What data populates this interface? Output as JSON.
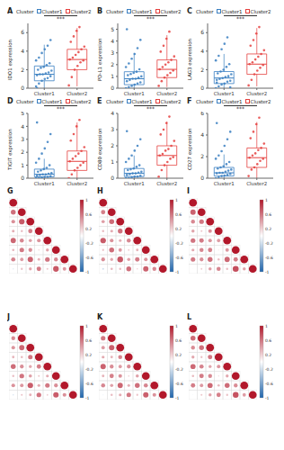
{
  "chart_data": [
    {
      "title": "A",
      "type": "box",
      "y_label": "IDO1 expression",
      "categories": [
        "Cluster1",
        "Cluster2"
      ],
      "ylim": [
        0,
        7
      ],
      "yticks": [
        0,
        2,
        4,
        6
      ],
      "annotations": [
        "***"
      ],
      "legend_title": "Cluster",
      "series": [
        {
          "name": "Cluster1",
          "color": "#3a7fc1",
          "box": {
            "q1": 0.8,
            "median": 1.5,
            "q3": 2.4,
            "whisker_low": 0,
            "whisker_high": 4.7
          },
          "points": [
            0.2,
            0.5,
            0.8,
            1.0,
            1.1,
            1.3,
            1.4,
            1.5,
            1.5,
            1.6,
            1.7,
            1.9,
            2.0,
            2.2,
            2.3,
            2.5,
            2.7,
            3.0,
            3.3,
            3.8,
            4.2,
            4.6,
            5.2,
            0.0
          ]
        },
        {
          "name": "Cluster2",
          "color": "#e5413f",
          "box": {
            "q1": 2.0,
            "median": 3.1,
            "q3": 4.2,
            "whisker_low": 0.2,
            "whisker_high": 6.5
          },
          "points": [
            0.3,
            1.2,
            2.0,
            2.4,
            2.8,
            3.0,
            3.1,
            3.3,
            3.6,
            3.9,
            4.2,
            4.5,
            5.0,
            5.6,
            6.2,
            6.6
          ]
        }
      ]
    },
    {
      "title": "B",
      "type": "box",
      "y_label": "PD-L1 expression",
      "categories": [
        "Cluster1",
        "Cluster2"
      ],
      "ylim": [
        0,
        5.5
      ],
      "yticks": [
        0,
        1,
        2,
        3,
        4,
        5
      ],
      "annotations": [
        "***"
      ],
      "legend_title": "Cluster",
      "series": [
        {
          "name": "Cluster1",
          "color": "#3a7fc1",
          "box": {
            "q1": 0.3,
            "median": 0.8,
            "q3": 1.4,
            "whisker_low": 0,
            "whisker_high": 3.0
          },
          "points": [
            0,
            0.1,
            0.2,
            0.3,
            0.4,
            0.5,
            0.6,
            0.7,
            0.8,
            0.8,
            0.9,
            1.0,
            1.1,
            1.2,
            1.3,
            1.4,
            1.6,
            1.8,
            2.1,
            2.5,
            2.9,
            3.4,
            4.1,
            5.0
          ]
        },
        {
          "name": "Cluster2",
          "color": "#e5413f",
          "box": {
            "q1": 0.9,
            "median": 1.6,
            "q3": 2.4,
            "whisker_low": 0.1,
            "whisker_high": 4.5
          },
          "points": [
            0.2,
            0.6,
            0.9,
            1.1,
            1.3,
            1.5,
            1.6,
            1.8,
            2.0,
            2.2,
            2.4,
            2.7,
            3.1,
            3.6,
            4.2,
            4.8
          ]
        }
      ]
    },
    {
      "title": "C",
      "type": "box",
      "y_label": "LAG3 expression",
      "categories": [
        "Cluster1",
        "Cluster2"
      ],
      "ylim": [
        0,
        7
      ],
      "yticks": [
        0,
        2,
        4,
        6
      ],
      "annotations": [
        "***"
      ],
      "legend_title": "Cluster",
      "series": [
        {
          "name": "Cluster1",
          "color": "#3a7fc1",
          "box": {
            "q1": 0.5,
            "median": 1.1,
            "q3": 1.8,
            "whisker_low": 0,
            "whisker_high": 3.7
          },
          "points": [
            0,
            0.2,
            0.4,
            0.5,
            0.7,
            0.8,
            0.9,
            1.0,
            1.1,
            1.2,
            1.3,
            1.5,
            1.6,
            1.8,
            2.0,
            2.3,
            2.6,
            3.0,
            3.5,
            4.2,
            4.8,
            5.5,
            0.1,
            0.6
          ]
        },
        {
          "name": "Cluster2",
          "color": "#e5413f",
          "box": {
            "q1": 1.5,
            "median": 2.6,
            "q3": 3.7,
            "whisker_low": 0.2,
            "whisker_high": 6.5
          },
          "points": [
            0.3,
            0.9,
            1.5,
            1.9,
            2.2,
            2.5,
            2.6,
            2.8,
            3.1,
            3.4,
            3.7,
            4.1,
            4.6,
            5.2,
            5.9,
            6.6
          ]
        }
      ]
    },
    {
      "title": "D",
      "type": "box",
      "y_label": "TIGIT expression",
      "categories": [
        "Cluster1",
        "Cluster2"
      ],
      "ylim": [
        0,
        5
      ],
      "yticks": [
        0,
        1,
        2,
        3,
        4,
        5
      ],
      "annotations": [
        "***"
      ],
      "legend_title": "Cluster",
      "series": [
        {
          "name": "Cluster1",
          "color": "#3a7fc1",
          "box": {
            "q1": 0.1,
            "median": 0.3,
            "q3": 0.7,
            "whisker_low": 0,
            "whisker_high": 1.5
          },
          "points": [
            0,
            0,
            0.05,
            0.1,
            0.1,
            0.15,
            0.2,
            0.25,
            0.3,
            0.3,
            0.35,
            0.4,
            0.5,
            0.6,
            0.7,
            0.8,
            1.0,
            1.2,
            1.5,
            1.9,
            2.3,
            2.8,
            3.4,
            4.3
          ]
        },
        {
          "name": "Cluster2",
          "color": "#e5413f",
          "box": {
            "q1": 0.6,
            "median": 1.3,
            "q3": 2.1,
            "whisker_low": 0,
            "whisker_high": 4.3
          },
          "points": [
            0,
            0.3,
            0.6,
            0.8,
            1.0,
            1.2,
            1.3,
            1.5,
            1.7,
            1.9,
            2.1,
            2.4,
            2.9,
            3.4,
            4.0,
            4.5
          ]
        }
      ]
    },
    {
      "title": "E",
      "type": "box",
      "y_label": "CD80 expression",
      "categories": [
        "Cluster1",
        "Cluster2"
      ],
      "ylim": [
        0,
        4
      ],
      "yticks": [
        0,
        1,
        2,
        3,
        4
      ],
      "annotations": [
        "***"
      ],
      "legend_title": "Cluster",
      "series": [
        {
          "name": "Cluster1",
          "color": "#3a7fc1",
          "box": {
            "q1": 0.1,
            "median": 0.3,
            "q3": 0.6,
            "whisker_low": 0,
            "whisker_high": 1.4
          },
          "points": [
            0,
            0,
            0.05,
            0.1,
            0.1,
            0.15,
            0.2,
            0.25,
            0.3,
            0.3,
            0.35,
            0.4,
            0.5,
            0.55,
            0.6,
            0.7,
            0.8,
            1.0,
            1.2,
            1.4,
            1.7,
            2.0,
            2.4,
            2.9
          ]
        },
        {
          "name": "Cluster2",
          "color": "#e5413f",
          "box": {
            "q1": 0.8,
            "median": 1.4,
            "q3": 2.0,
            "whisker_low": 0,
            "whisker_high": 3.5
          },
          "points": [
            0.1,
            0.5,
            0.8,
            1.0,
            1.2,
            1.3,
            1.4,
            1.5,
            1.7,
            1.8,
            2.0,
            2.3,
            2.7,
            3.0,
            3.4,
            3.8
          ]
        }
      ]
    },
    {
      "title": "F",
      "type": "box",
      "y_label": "CD27 expression",
      "categories": [
        "Cluster1",
        "Cluster2"
      ],
      "ylim": [
        0,
        6
      ],
      "yticks": [
        0,
        2,
        4,
        6
      ],
      "annotations": [
        "***"
      ],
      "legend_title": "Cluster",
      "series": [
        {
          "name": "Cluster1",
          "color": "#3a7fc1",
          "box": {
            "q1": 0.2,
            "median": 0.5,
            "q3": 1.0,
            "whisker_low": 0,
            "whisker_high": 2.2
          },
          "points": [
            0,
            0.1,
            0.2,
            0.25,
            0.3,
            0.4,
            0.45,
            0.5,
            0.5,
            0.6,
            0.7,
            0.8,
            0.9,
            1.0,
            1.1,
            1.3,
            1.5,
            1.8,
            2.1,
            2.5,
            3.0,
            3.6,
            4.3,
            5.1
          ]
        },
        {
          "name": "Cluster2",
          "color": "#e5413f",
          "box": {
            "q1": 1.0,
            "median": 1.9,
            "q3": 2.8,
            "whisker_low": 0,
            "whisker_high": 5.2
          },
          "points": [
            0.2,
            0.8,
            1.0,
            1.3,
            1.6,
            1.8,
            1.9,
            2.1,
            2.3,
            2.6,
            2.8,
            3.2,
            3.7,
            4.3,
            5.0,
            5.6
          ]
        }
      ]
    },
    {
      "title": "G",
      "type": "correlation",
      "tick_labels": false,
      "colorbar_range": [
        -1,
        1
      ],
      "colorbar_ticks": [
        -1,
        -0.6,
        -0.2,
        0.2,
        0.6,
        1
      ],
      "cells": [
        [
          1
        ],
        [
          0.62,
          1
        ],
        [
          0.48,
          0.71,
          1
        ],
        [
          0.35,
          0.28,
          0.55,
          1
        ],
        [
          0.66,
          0.52,
          0.41,
          0.47,
          1
        ],
        [
          0.31,
          0.58,
          0.49,
          0.18,
          0.39,
          1
        ],
        [
          0.54,
          0.43,
          0.68,
          0.33,
          0.6,
          0.51,
          1
        ],
        [
          -0.15,
          0.27,
          0.38,
          0.57,
          0.24,
          0.72,
          0.45,
          1
        ]
      ]
    },
    {
      "title": "H",
      "type": "correlation",
      "tick_labels": false,
      "colorbar_range": [
        -1,
        1
      ],
      "colorbar_ticks": [
        -1,
        -0.6,
        -0.2,
        0.2,
        0.6,
        1
      ],
      "cells": [
        [
          1
        ],
        [
          0.55,
          1
        ],
        [
          0.42,
          0.64,
          1
        ],
        [
          0.29,
          0.36,
          0.61,
          1
        ],
        [
          0.71,
          0.47,
          0.35,
          0.52,
          1
        ],
        [
          0.26,
          0.63,
          0.44,
          0.21,
          0.33,
          1
        ],
        [
          0.49,
          0.38,
          0.73,
          0.41,
          0.57,
          0.46,
          1
        ],
        [
          -0.22,
          0.31,
          0.29,
          0.62,
          0.19,
          0.68,
          0.51,
          1
        ]
      ]
    },
    {
      "title": "I",
      "type": "correlation",
      "tick_labels": false,
      "colorbar_range": [
        -1,
        1
      ],
      "colorbar_ticks": [
        -1,
        -0.6,
        -0.2,
        0.2,
        0.6,
        1
      ],
      "cells": [
        [
          1
        ],
        [
          0.68,
          1
        ],
        [
          0.51,
          0.59,
          1
        ],
        [
          0.4,
          0.24,
          0.47,
          1
        ],
        [
          0.6,
          0.57,
          0.46,
          0.43,
          1
        ],
        [
          0.37,
          0.52,
          0.55,
          0.13,
          0.45,
          1
        ],
        [
          0.58,
          0.49,
          0.62,
          0.28,
          0.66,
          0.56,
          1
        ],
        [
          -0.08,
          0.22,
          0.41,
          0.53,
          0.29,
          0.76,
          0.4,
          1
        ]
      ]
    },
    {
      "title": "J",
      "type": "correlation",
      "tick_labels": false,
      "colorbar_range": [
        -1,
        1
      ],
      "colorbar_ticks": [
        -1,
        -0.6,
        -0.2,
        0.2,
        0.6,
        1
      ],
      "cells": [
        [
          1
        ],
        [
          0.5,
          1
        ],
        [
          0.46,
          0.66,
          1
        ],
        [
          0.32,
          0.3,
          0.58,
          1
        ],
        [
          0.63,
          0.49,
          0.38,
          0.55,
          1
        ],
        [
          0.28,
          0.6,
          0.42,
          0.24,
          0.36,
          1
        ],
        [
          0.47,
          0.45,
          0.7,
          0.37,
          0.58,
          0.49,
          1
        ],
        [
          -0.18,
          0.25,
          0.34,
          0.6,
          0.21,
          0.7,
          0.48,
          1
        ]
      ]
    },
    {
      "title": "K",
      "type": "correlation",
      "tick_labels": false,
      "colorbar_range": [
        -1,
        1
      ],
      "colorbar_ticks": [
        -1,
        -0.6,
        -0.2,
        0.2,
        0.6,
        1
      ],
      "cells": [
        [
          1
        ],
        [
          0.59,
          1
        ],
        [
          0.44,
          0.69,
          1
        ],
        [
          0.37,
          0.33,
          0.52,
          1
        ],
        [
          0.68,
          0.5,
          0.43,
          0.49,
          1
        ],
        [
          0.33,
          0.55,
          0.47,
          0.2,
          0.41,
          1
        ],
        [
          0.52,
          0.41,
          0.66,
          0.35,
          0.62,
          0.53,
          1
        ],
        [
          -0.12,
          0.29,
          0.36,
          0.58,
          0.26,
          0.69,
          0.47,
          1
        ]
      ]
    },
    {
      "title": "L",
      "type": "correlation",
      "tick_labels": false,
      "colorbar_range": [
        -1,
        1
      ],
      "colorbar_ticks": [
        -1,
        -0.6,
        -0.2,
        0.2,
        0.6,
        1
      ],
      "cells": [
        [
          1
        ],
        [
          0.64,
          1
        ],
        [
          0.5,
          0.62,
          1
        ],
        [
          0.38,
          0.27,
          0.57,
          1
        ],
        [
          0.65,
          0.54,
          0.39,
          0.45,
          1
        ],
        [
          0.3,
          0.57,
          0.51,
          0.16,
          0.38,
          1
        ],
        [
          0.56,
          0.44,
          0.65,
          0.31,
          0.63,
          0.5,
          1
        ],
        [
          -0.1,
          0.24,
          0.4,
          0.55,
          0.27,
          0.74,
          0.43,
          1
        ]
      ]
    }
  ]
}
